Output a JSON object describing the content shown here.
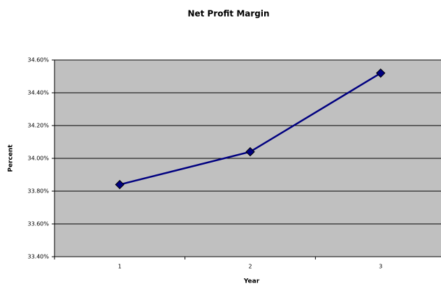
{
  "chart_data": {
    "type": "line",
    "title": "Net Profit Margin",
    "x_label": "Year",
    "y_label": "Percent",
    "categories": [
      "1",
      "2",
      "3"
    ],
    "series": [
      {
        "name": "Net Profit Margin",
        "color": "#000080",
        "values": [
          33.84,
          34.04,
          34.52
        ]
      }
    ],
    "ylim": [
      33.4,
      34.6
    ],
    "yticks": [
      {
        "value": 33.4,
        "label": "33.40%"
      },
      {
        "value": 33.6,
        "label": "33.60%"
      },
      {
        "value": 33.8,
        "label": "33.80%"
      },
      {
        "value": 34.0,
        "label": "34.00%"
      },
      {
        "value": 34.2,
        "label": "34.20%"
      },
      {
        "value": 34.4,
        "label": "34.40%"
      },
      {
        "value": 34.6,
        "label": "34.60%"
      }
    ],
    "grid": true,
    "plot_background": "#c0c0c0"
  }
}
